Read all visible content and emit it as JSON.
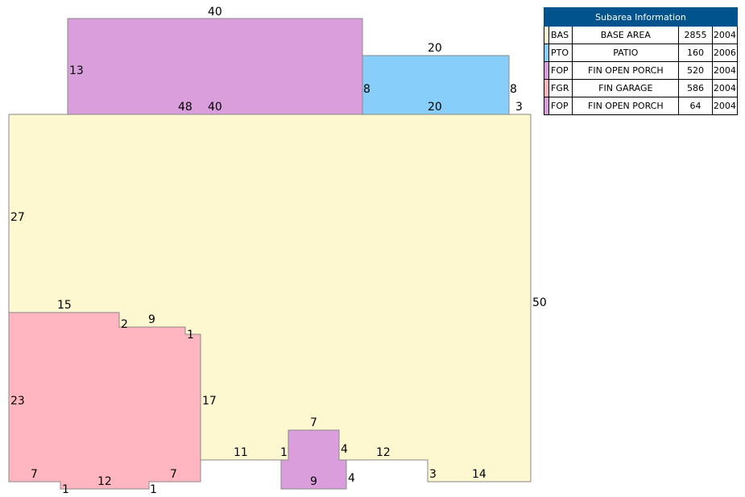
{
  "legend": {
    "title": "Subarea Information",
    "rows": [
      {
        "code": "BAS",
        "description": "BASE AREA",
        "area": "2855",
        "year": "2004",
        "color": "#fdf8d0"
      },
      {
        "code": "PTO",
        "description": "PATIO",
        "area": "160",
        "year": "2006",
        "color": "#87cefa"
      },
      {
        "code": "FOP",
        "description": "FIN OPEN PORCH",
        "area": "520",
        "year": "2004",
        "color": "#da9edd"
      },
      {
        "code": "FGR",
        "description": "FIN GARAGE",
        "area": "586",
        "year": "2004",
        "color": "#ffb6c1"
      },
      {
        "code": "FOP",
        "description": "FIN OPEN PORCH",
        "area": "64",
        "year": "2004",
        "color": "#da9edd"
      }
    ]
  },
  "dimensions": {
    "porch_top": "40",
    "porch_left": "13",
    "porch_bottom": "40",
    "patio_top": "20",
    "patio_left": "8",
    "patio_right": "8",
    "patio_bottom": "20",
    "base_top": "48",
    "base_right_step": "3",
    "base_left": "27",
    "base_right": "50",
    "garage_top": "15",
    "garage_step_a": "2",
    "garage_top_b": "9",
    "garage_step_b": "1",
    "garage_left": "23",
    "garage_right": "17",
    "garage_bottom_left": "7",
    "garage_notch_left": "1",
    "garage_bottom_mid": "12",
    "garage_notch_right": "1",
    "garage_bottom_right": "7",
    "base_bottom_left": "11",
    "small_porch_step": "1",
    "small_porch_top": "7",
    "small_porch_right_upper": "4",
    "small_porch_bottom": "9",
    "small_porch_right_lower": "4",
    "base_bottom_mid": "12",
    "base_step_bottom": "3",
    "base_bottom_right": "14"
  }
}
